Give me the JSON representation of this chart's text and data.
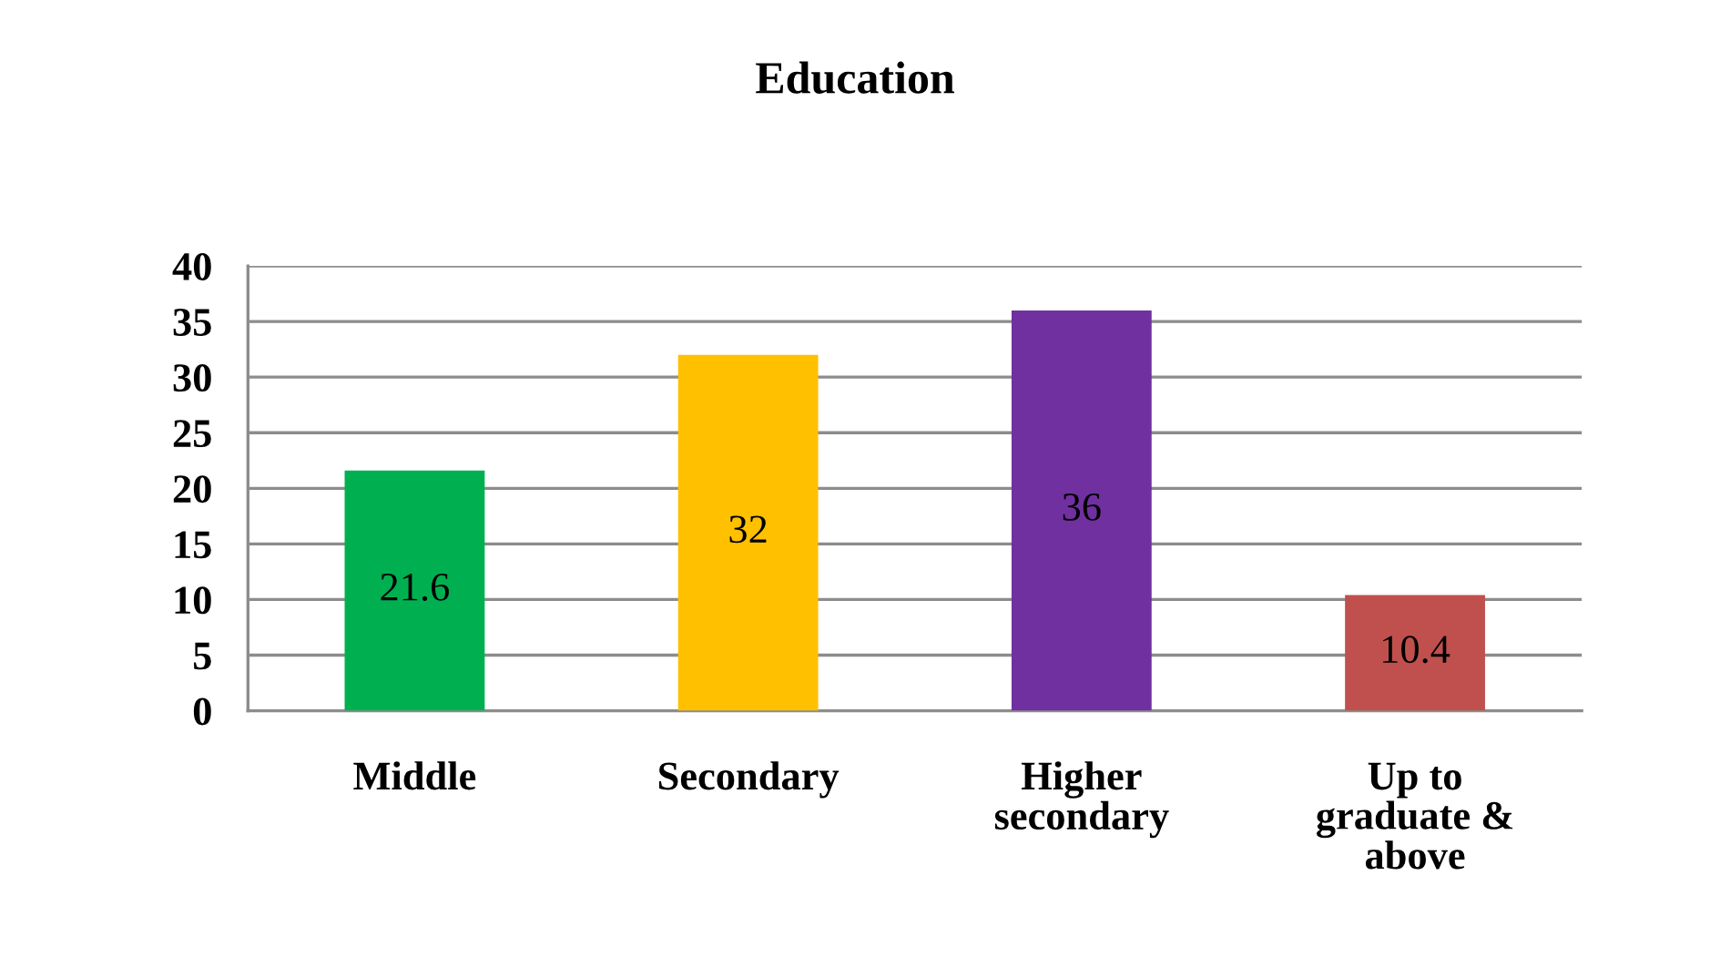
{
  "chart_data": {
    "type": "bar",
    "title": "Education",
    "categories": [
      "Middle",
      "Secondary",
      "Higher\nsecondary",
      "Up to\ngraduate &\nabove"
    ],
    "values": [
      21.6,
      32,
      36,
      10.4
    ],
    "colors": [
      "#00b050",
      "#ffc000",
      "#7030a0",
      "#c0504d"
    ],
    "ylim": [
      0,
      40
    ],
    "yticks": [
      0,
      5,
      10,
      15,
      20,
      25,
      30,
      35,
      40
    ],
    "grid": "y",
    "data_labels": true,
    "legend": false
  }
}
